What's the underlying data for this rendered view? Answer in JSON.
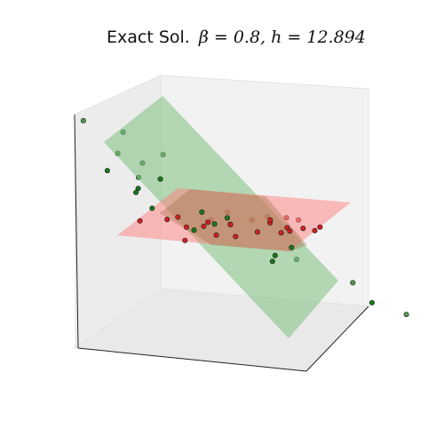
{
  "chart_data": {
    "type": "scatter",
    "projection": "3d",
    "title": {
      "text": "Exact Sol.",
      "math": "β = 0.8, h = 12.894"
    },
    "axes_visible": false,
    "grid": false,
    "planes": [
      {
        "name": "",
        "color": "#7fbf7f",
        "orientation": "tilted"
      },
      {
        "name": "",
        "color": "#ff8080",
        "orientation": "horizontal"
      }
    ],
    "series": [
      {
        "name": "",
        "color": "#1a7a1a",
        "points": [
          [
            -0.72,
            0.42,
            0.92
          ],
          [
            -0.46,
            0.48,
            0.8
          ],
          [
            -0.22,
            0.4,
            0.6
          ],
          [
            -0.6,
            0.3,
            0.62
          ],
          [
            -0.4,
            0.22,
            0.55
          ],
          [
            -0.72,
            0.05,
            0.5
          ],
          [
            -0.3,
            0.1,
            0.42
          ],
          [
            -0.52,
            -0.05,
            0.35
          ],
          [
            -0.55,
            -0.1,
            0.32
          ],
          [
            -0.45,
            -0.25,
            0.2
          ],
          [
            0.05,
            0.05,
            0.05
          ],
          [
            -0.2,
            -0.3,
            0.0
          ],
          [
            -0.05,
            -0.1,
            0.02
          ],
          [
            0.4,
            0.1,
            -0.25
          ],
          [
            0.25,
            -0.05,
            -0.3
          ],
          [
            0.3,
            0.2,
            -0.4
          ],
          [
            0.2,
            -0.1,
            -0.35
          ],
          [
            0.6,
            0.3,
            -0.65
          ],
          [
            0.72,
            0.1,
            -0.8
          ],
          [
            0.88,
            0.25,
            -0.95
          ],
          [
            -0.55,
            0.2,
            0.4
          ],
          [
            -0.15,
            0.05,
            0.1
          ]
        ]
      },
      {
        "name": "",
        "color": "#d42020",
        "points": [
          [
            -0.75,
            -0.1,
            0.02
          ],
          [
            -0.4,
            0.0,
            0.05
          ],
          [
            -0.3,
            -0.2,
            0.0
          ],
          [
            -0.2,
            0.2,
            -0.02
          ],
          [
            -0.1,
            -0.25,
            0.03
          ],
          [
            0.0,
            0.1,
            -0.03
          ],
          [
            0.1,
            -0.1,
            0.02
          ],
          [
            0.2,
            0.2,
            0.0
          ],
          [
            0.35,
            -0.2,
            -0.02
          ],
          [
            0.45,
            0.0,
            0.03
          ],
          [
            0.55,
            -0.15,
            -0.03
          ],
          [
            0.65,
            0.2,
            0.02
          ],
          [
            0.75,
            -0.05,
            0.0
          ],
          [
            0.85,
            0.1,
            -0.02
          ],
          [
            0.92,
            -0.2,
            0.02
          ],
          [
            -0.6,
            0.15,
            -0.02
          ],
          [
            -0.05,
            0.35,
            0.03
          ],
          [
            0.3,
            0.35,
            0.0
          ],
          [
            0.15,
            -0.3,
            -0.05
          ],
          [
            -0.35,
            -0.35,
            -0.1
          ],
          [
            0.5,
            0.3,
            0.01
          ],
          [
            0.7,
            -0.25,
            0.02
          ],
          [
            0.0,
            -0.35,
            -0.03
          ],
          [
            0.4,
            0.15,
            0.02
          ],
          [
            -0.15,
            0.0,
            0.01
          ],
          [
            0.6,
            -0.05,
            0.0
          ]
        ]
      }
    ]
  }
}
